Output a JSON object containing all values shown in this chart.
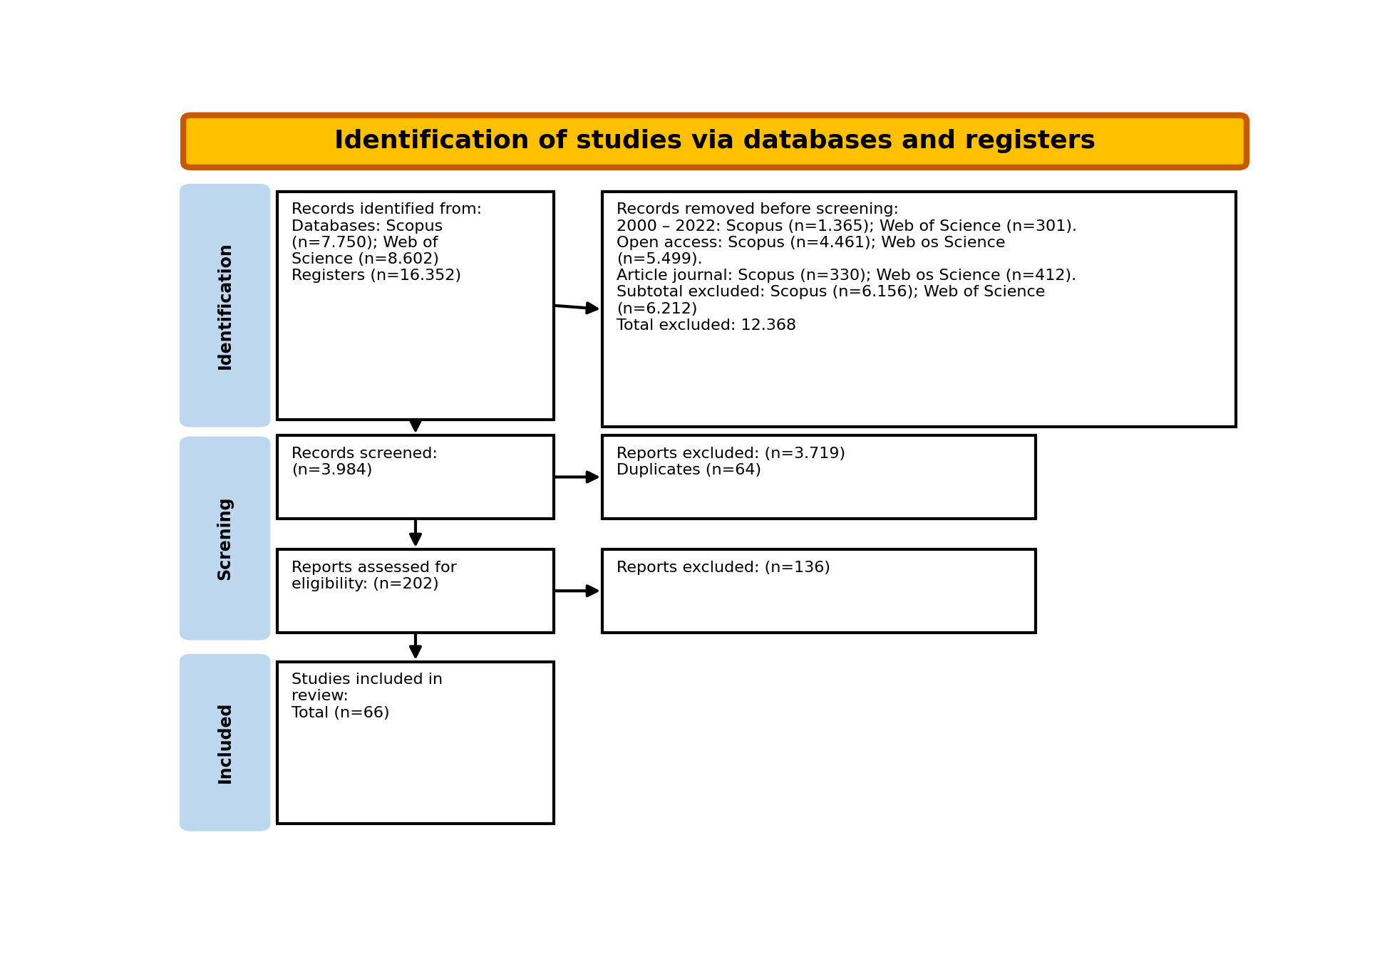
{
  "title": "Identification of studies via databases and registers",
  "title_bg": "#FFC000",
  "title_border": "#C55A00",
  "title_fontsize": 26,
  "title_color": "#000000",
  "label_bg": "#BDD7EE",
  "label_border": "#9DC3E6",
  "label_texts": [
    "Identification",
    "Screning",
    "Included"
  ],
  "box_border": "#000000",
  "box_bg": "#FFFFFF",
  "box1_text": "Records identified from:\nDatabases: Scopus\n(n=7.750); Web of\nScience (n=8.602)\nRegisters (n=16.352)",
  "box2_text": "Records removed before screening:\n2000 – 2022: Scopus (n=1.365); Web of Science (n=301).\nOpen access: Scopus (n=4.461); Web os Science\n(n=5.499).\nArticle journal: Scopus (n=330); Web os Science (n=412).\nSubtotal excluded: Scopus (n=6.156); Web of Science\n(n=6.212)\nTotal excluded: 12.368",
  "box3_text": "Records screened:\n(n=3.984)",
  "box4_text": "Reports excluded: (n=3.719)\nDuplicates (n=64)",
  "box5_text": "Reports assessed for\neligibility: (n=202)",
  "box6_text": "Reports excluded: (n=136)",
  "box7_text": "Studies included in\nreview:\nTotal (n=66)",
  "arrow_color": "#000000",
  "fontsize": 16,
  "fontsize_label": 17
}
